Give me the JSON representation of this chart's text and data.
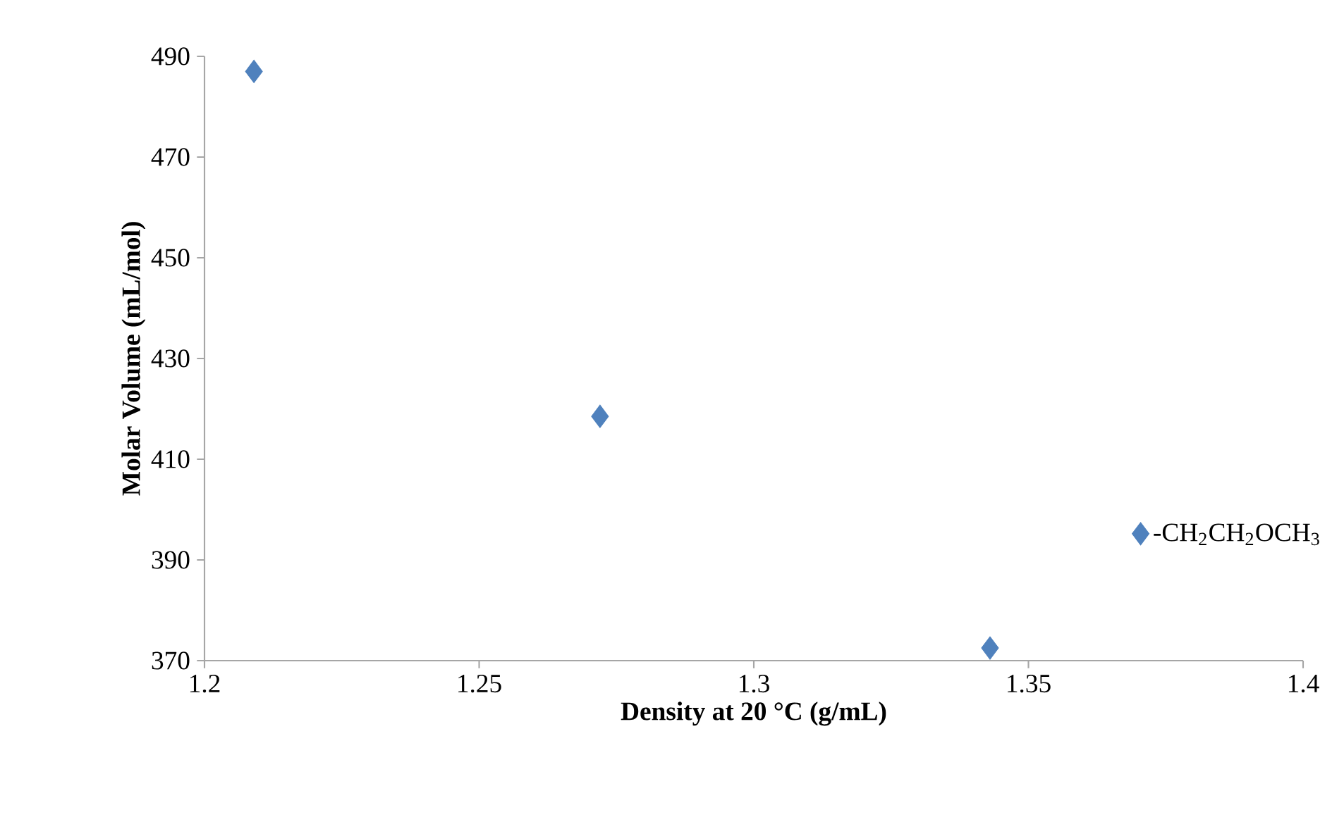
{
  "chart_data": {
    "type": "scatter",
    "xlabel": "Density at 20 °C (g/mL)",
    "ylabel": "Molar Volume (mL/mol)",
    "x": [
      1.209,
      1.272,
      1.343
    ],
    "series": [
      {
        "name": "-CH$_{2}$CH$_{2}$OCH$_{3}$",
        "color": "#4f81bd",
        "values": [
          487,
          418.5,
          372.5
        ]
      }
    ],
    "xlim": [
      1.2,
      1.4
    ],
    "ylim": [
      370,
      490
    ],
    "xticks": [
      1.2,
      1.25,
      1.3,
      1.35,
      1.4
    ],
    "yticks": [
      370,
      390,
      410,
      430,
      450,
      470,
      490
    ],
    "legend": "right",
    "marker": "diamond"
  }
}
